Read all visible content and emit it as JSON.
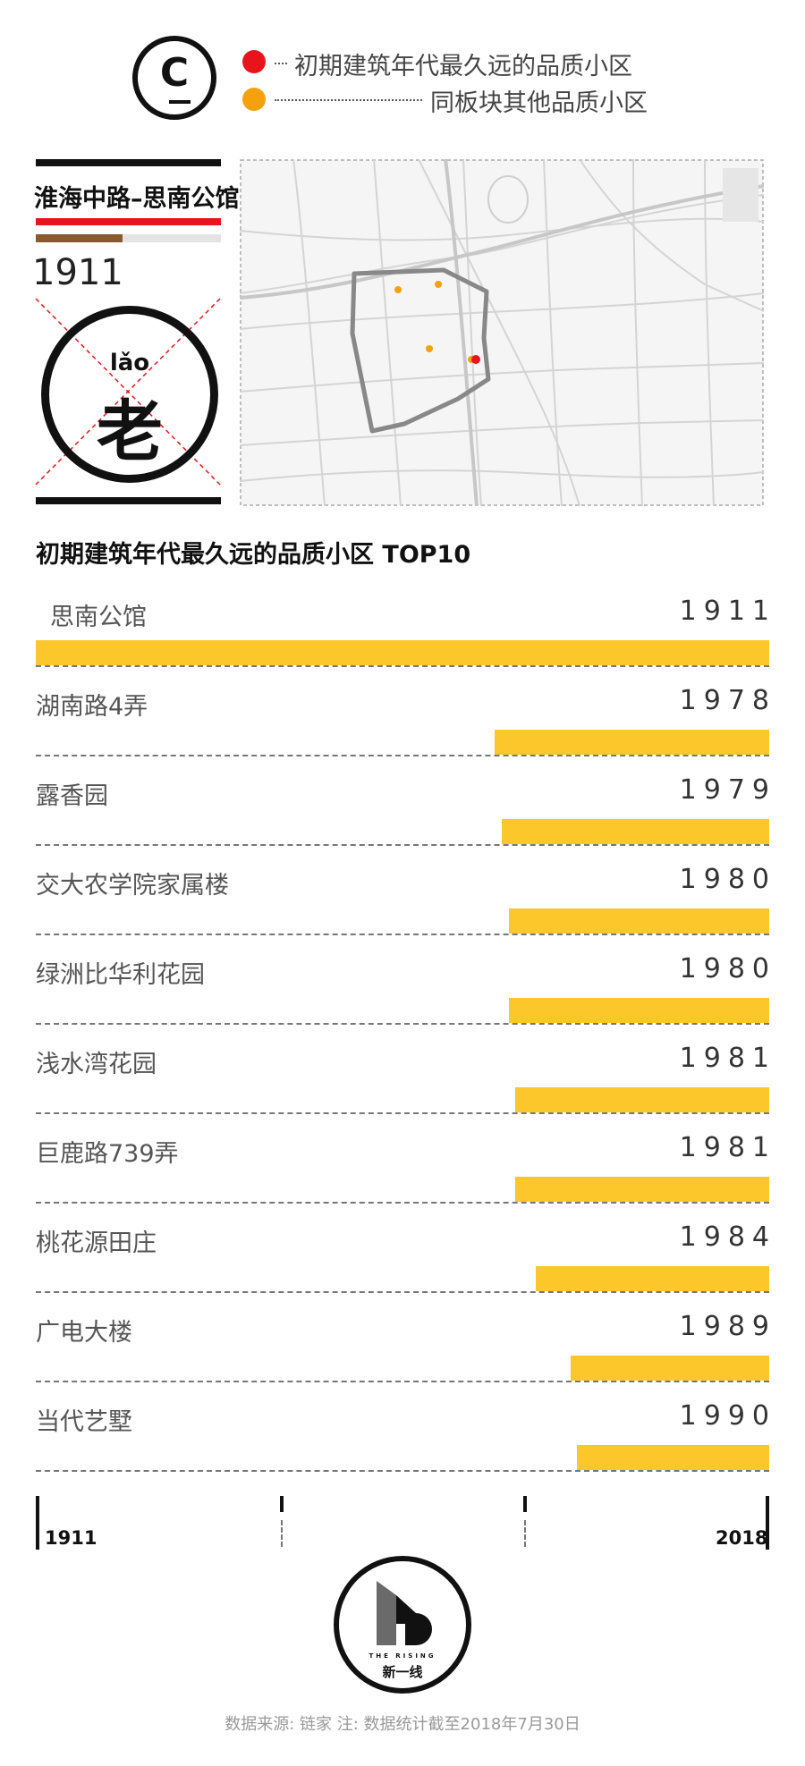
{
  "header": {
    "logo_letter": "C",
    "legend": [
      {
        "label": "初期建筑年代最久远的品质小区",
        "color": "#e8141b"
      },
      {
        "label": "同板块其他品质小区",
        "color": "#f5a10d"
      }
    ]
  },
  "area": {
    "name": "淮海中路–思南公馆",
    "earliest_year": "1911",
    "pinyin": "lǎo",
    "character": "老"
  },
  "map": {
    "icon": "district-map"
  },
  "chart_data": {
    "type": "bar",
    "title": "初期建筑年代最久远的品质小区 TOP10",
    "categories": [
      "思南公馆",
      "湖南路4弄",
      "露香园",
      "交大农学院家属楼",
      "绿洲比华利花园",
      "浅水湾花园",
      "巨鹿路739弄",
      "桃花源田庄",
      "广电大楼",
      "当代艺墅"
    ],
    "values": [
      1911,
      1978,
      1979,
      1980,
      1980,
      1981,
      1981,
      1984,
      1989,
      1990
    ],
    "xlim": [
      1911,
      2018
    ],
    "axis_labels": {
      "start": "1911",
      "end": "2018"
    },
    "bar_color": "#fbc72b",
    "grid": false
  },
  "footer": {
    "brand_sub": "THE RISING",
    "brand_name": "新一线",
    "source": "数据来源: 链家  注: 数据统计截至2018年7月30日"
  }
}
